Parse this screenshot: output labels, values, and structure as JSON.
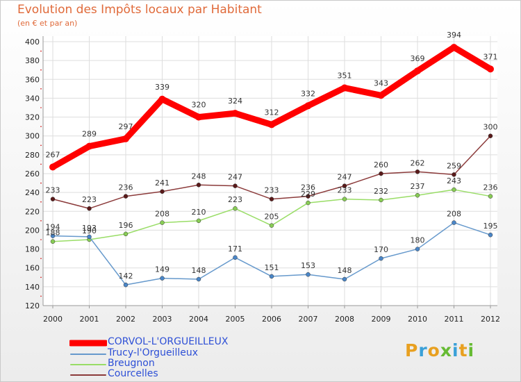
{
  "title": "Evolution des Impôts locaux par Habitant",
  "subtitle": "(en € et par an)",
  "logo_text": "Proxiti",
  "chart_data": {
    "type": "line",
    "title": "Evolution des Impôts locaux par Habitant",
    "subtitle": "(en € et par an)",
    "xlabel": "",
    "ylabel": "",
    "x": [
      "2000",
      "2001",
      "2002",
      "2003",
      "2004",
      "2005",
      "2006",
      "2007",
      "2008",
      "2009",
      "2010",
      "2011",
      "2012"
    ],
    "ylim": [
      120,
      400
    ],
    "yticks": [
      120,
      140,
      160,
      180,
      200,
      220,
      240,
      260,
      280,
      300,
      320,
      340,
      360,
      380,
      400
    ],
    "grid": true,
    "legend_position": "bottom-left",
    "series": [
      {
        "name": "CORVOL-L'ORGUEILLEUX",
        "color": "#ff0000",
        "point_color": "#ff0000",
        "thick": true,
        "values": [
          267,
          289,
          297,
          339,
          320,
          324,
          312,
          332,
          351,
          343,
          369,
          394,
          371
        ]
      },
      {
        "name": "Trucy-l'Orgueilleux",
        "color": "#6699cc",
        "point_color": "#4a86c8",
        "values": [
          194,
          193,
          142,
          149,
          148,
          171,
          151,
          153,
          148,
          170,
          180,
          208,
          195
        ]
      },
      {
        "name": "Breugnon",
        "color": "#99dd66",
        "point_color": "#88cc55",
        "values": [
          188,
          190,
          196,
          208,
          210,
          223,
          205,
          229,
          233,
          232,
          237,
          243,
          236
        ]
      },
      {
        "name": "Courcelles",
        "color": "#8b3a3a",
        "point_color": "#5a1a1a",
        "values": [
          233,
          223,
          236,
          241,
          248,
          247,
          233,
          236,
          247,
          260,
          262,
          259,
          300
        ]
      }
    ]
  }
}
